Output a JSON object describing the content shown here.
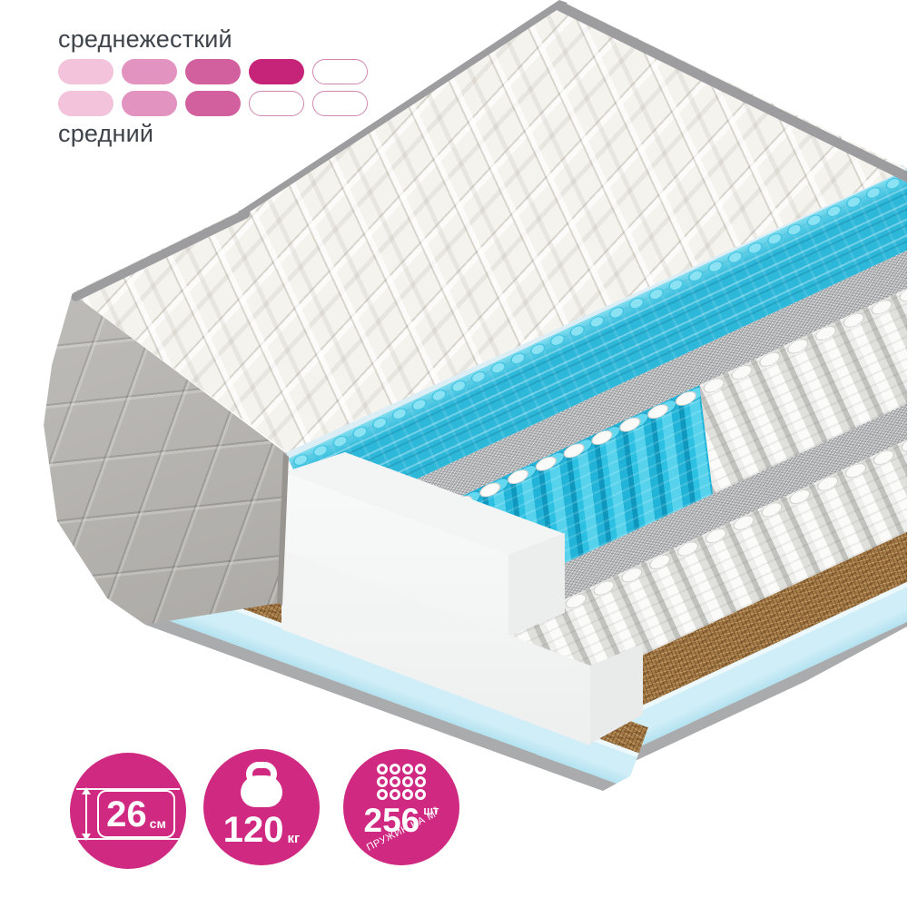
{
  "firmness_scales": [
    {
      "label": "среднежесткий",
      "filled": 4,
      "total": 5
    },
    {
      "label": "средний",
      "filled": 3,
      "total": 5
    }
  ],
  "spec_badges": [
    {
      "icon": "height-double-arrow",
      "value": "26",
      "unit": "см"
    },
    {
      "icon": "kettlebell",
      "value": "120",
      "unit": "кг"
    },
    {
      "icon": "springs-grid",
      "value": "256",
      "unit": "шт",
      "caption": "ПРУЖИН НА М",
      "caption_sup": "2",
      "grid": {
        "rows": 3,
        "cols": 4
      }
    }
  ],
  "colors": {
    "accent_magenta": "#cf2982",
    "pill1": "#f2c3db",
    "pill2": "#e293c0",
    "pill3": "#d2609e",
    "pill4": "#c62478",
    "pill_outline": "#d087ae",
    "ink": "#3f444a",
    "quilt": "#f5f3ee",
    "side_gray": "#b6b3ae",
    "edge_gray": "#9d9da0",
    "liner_blue": "#dceef5",
    "wave_foam": "#2db8da",
    "felt_gray": "#c0c1c3",
    "spring_cyan": "#27bfe2",
    "spring_white": "#f2f2f0",
    "coir_brown": "#a47946",
    "base_blue": "#cfeef7",
    "bottom_gray": "#a9abad"
  }
}
